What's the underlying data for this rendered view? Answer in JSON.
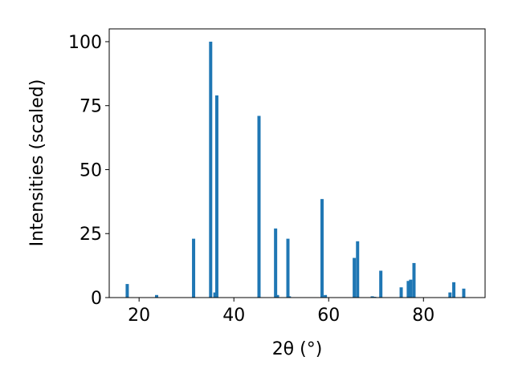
{
  "chart_data": {
    "type": "bar",
    "xlabel": "2θ (°)",
    "ylabel": "Intensities (scaled)",
    "x": [
      17.5,
      23.7,
      31.5,
      35.1,
      36.0,
      36.4,
      45.3,
      48.8,
      49.2,
      51.4,
      51.7,
      58.6,
      59.3,
      65.4,
      66.1,
      69.2,
      69.7,
      71.0,
      75.3,
      76.8,
      77.3,
      78.0,
      85.6,
      86.4,
      88.5
    ],
    "values": [
      5.3,
      1,
      23,
      100,
      2,
      79,
      71,
      27,
      1,
      23,
      0.5,
      38.5,
      1,
      15.5,
      22,
      0.5,
      0.3,
      10.5,
      4,
      6.5,
      7,
      13.5,
      2,
      6,
      3.5
    ],
    "color": "#1f77b4",
    "xlim": [
      13.7,
      93.0
    ],
    "xticks": [
      20,
      40,
      60,
      80
    ],
    "ylim": [
      0,
      105
    ],
    "yticks": [
      0,
      25,
      50,
      75,
      100
    ]
  }
}
